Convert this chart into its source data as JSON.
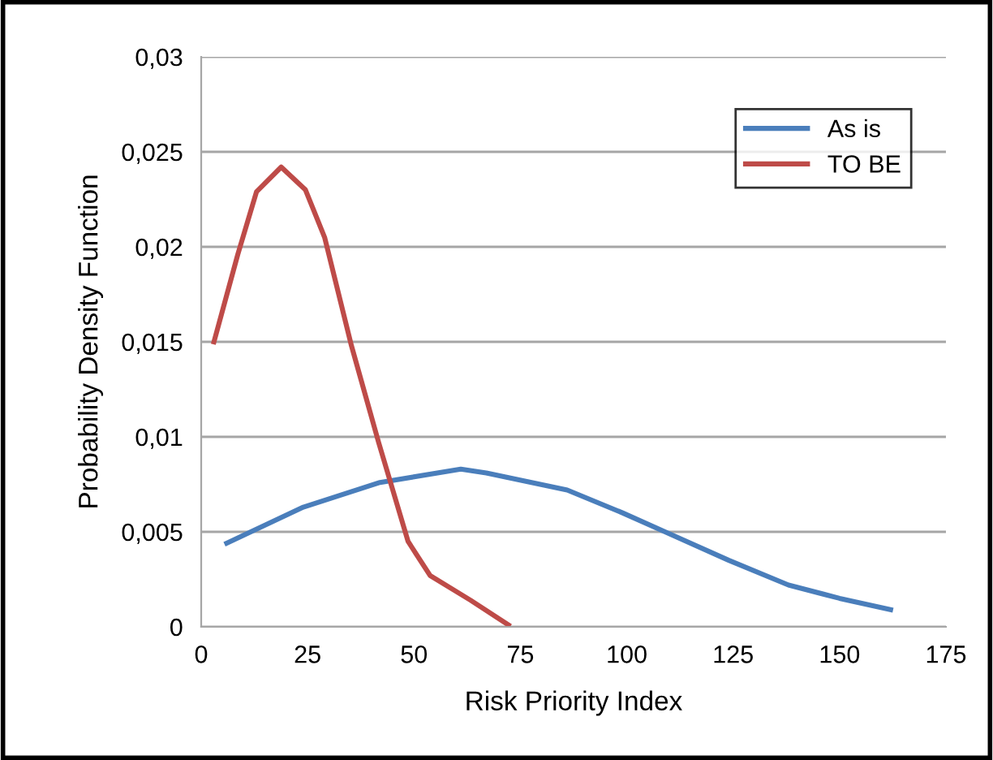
{
  "chart_data": {
    "type": "line",
    "xlabel": "Risk Priority Index",
    "ylabel": "Probability Density Function",
    "xlim": [
      0,
      175
    ],
    "xticks": [
      0,
      25,
      50,
      75,
      100,
      125,
      150,
      175
    ],
    "ylim": [
      0,
      0.03
    ],
    "yticks": [
      {
        "value": 0,
        "label": "0"
      },
      {
        "value": 0.005,
        "label": "0,005"
      },
      {
        "value": 0.01,
        "label": "0,01"
      },
      {
        "value": 0.015,
        "label": "0,015"
      },
      {
        "value": 0.02,
        "label": "0,02"
      },
      {
        "value": 0.025,
        "label": "0,025"
      },
      {
        "value": 0.03,
        "label": "0,03"
      }
    ],
    "grid": "y",
    "legend": "top right",
    "marker": "none",
    "line_style": "solid",
    "series": [
      {
        "name": "As is",
        "color": "#4a7ebb",
        "x": [
          6,
          24,
          42,
          61,
          67,
          86,
          99,
          109,
          124,
          138,
          150,
          162
        ],
        "values": [
          0.0044,
          0.0063,
          0.0076,
          0.0083,
          0.0081,
          0.0072,
          0.006,
          0.005,
          0.0035,
          0.0022,
          0.0015,
          0.0009
        ]
      },
      {
        "name": "TO BE",
        "color": "#be4b48",
        "x": [
          3,
          8.6,
          13,
          18.8,
          24.5,
          29,
          35.3,
          41.7,
          48.6,
          53.8,
          63.3,
          72.2
        ],
        "values": [
          0.015,
          0.0196,
          0.0229,
          0.0242,
          0.023,
          0.0205,
          0.0148,
          0.0097,
          0.0045,
          0.0027,
          0.0014,
          0.0001
        ]
      }
    ]
  }
}
